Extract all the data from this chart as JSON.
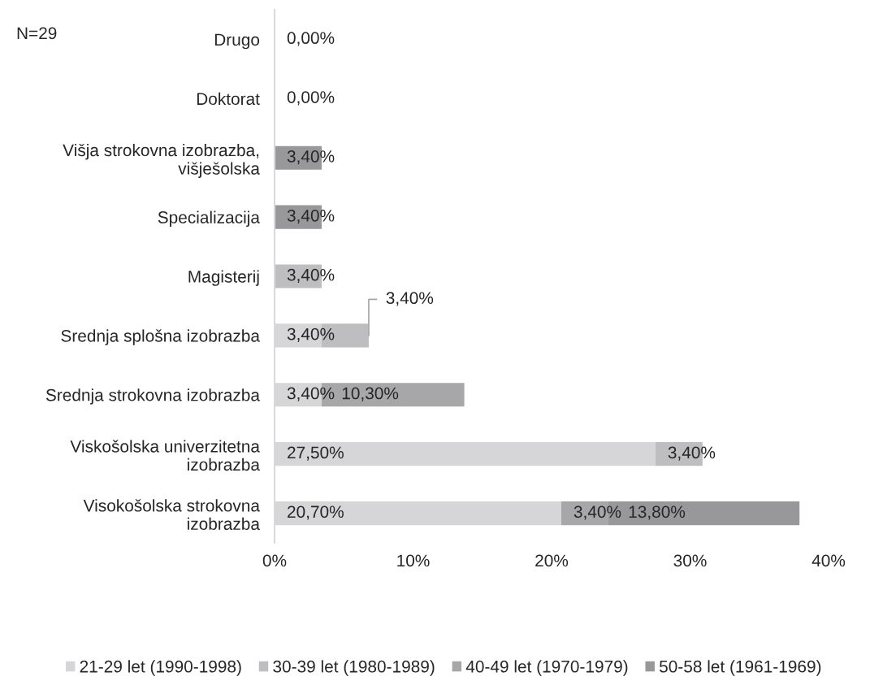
{
  "chart_data": {
    "type": "bar",
    "orientation": "horizontal",
    "stacked": true,
    "categories": [
      "Drugo",
      "Doktorat",
      "Višja strokovna izobrazba,\nvišješolska",
      "Specializacija",
      "Magisterij",
      "Srednja splošna izobrazba",
      "Srednja strokovna izobrazba",
      "Viskošolska univerzitetna\nizobrazba",
      "Visokošolska strokovna\nizobrazba"
    ],
    "series": [
      {
        "name": "21-29 let (1990-1998)",
        "color": "#d6d6d8",
        "values": [
          0,
          0,
          null,
          null,
          null,
          3.4,
          3.4,
          27.5,
          20.7
        ],
        "value_labels": [
          "0,00%",
          "0,00%",
          null,
          null,
          null,
          "3,40%",
          "3,40%",
          "27,50%",
          "20,70%"
        ]
      },
      {
        "name": "30-39 let (1980-1989)",
        "color": "#bebec0",
        "values": [
          null,
          null,
          null,
          null,
          3.4,
          3.4,
          null,
          3.4,
          null
        ],
        "value_labels": [
          null,
          null,
          null,
          null,
          "3,40%",
          "3,40%",
          null,
          "3,40%",
          null
        ]
      },
      {
        "name": "40-49 let (1970-1979)",
        "color": "#a7a7a9",
        "values": [
          null,
          null,
          null,
          null,
          null,
          null,
          10.3,
          null,
          3.4
        ],
        "value_labels": [
          null,
          null,
          null,
          null,
          null,
          null,
          "10,30%",
          null,
          "3,40%"
        ]
      },
      {
        "name": "50-58 let (1961-1969)",
        "color": "#98989a",
        "values": [
          null,
          null,
          3.4,
          3.4,
          null,
          null,
          null,
          null,
          13.8
        ],
        "value_labels": [
          null,
          null,
          "3,40%",
          "3,40%",
          null,
          null,
          null,
          null,
          "13,80%"
        ]
      }
    ],
    "xlim": [
      0,
      40
    ],
    "xticks": [
      {
        "value": 0,
        "label": "0%"
      },
      {
        "value": 10,
        "label": "10%"
      },
      {
        "value": 20,
        "label": "20%"
      },
      {
        "value": 30,
        "label": "30%"
      },
      {
        "value": 40,
        "label": "40%"
      }
    ],
    "annotations": [
      "N=29"
    ],
    "legend": "bottom",
    "grid": false
  }
}
